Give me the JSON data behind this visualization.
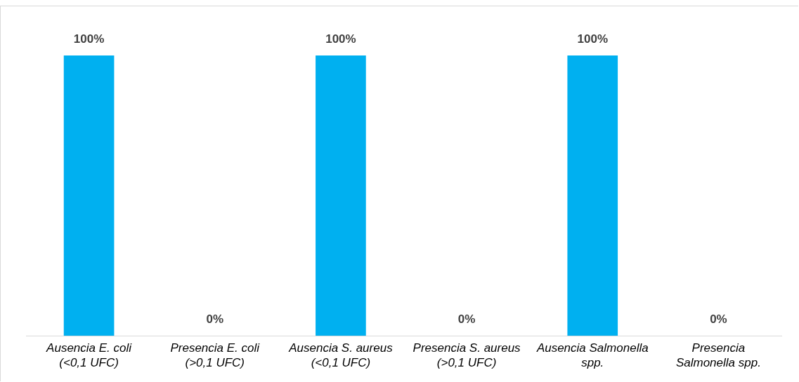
{
  "chart_data": {
    "type": "bar",
    "categories": [
      "Ausencia E. coli (<0,1 UFC)",
      "Presencia E. coli (>0,1 UFC)",
      "Ausencia S. aureus (<0,1 UFC)",
      "Presencia S. aureus (>0,1 UFC)",
      "Ausencia Salmonella spp.",
      "Presencia Salmonella spp."
    ],
    "values": [
      100,
      0,
      100,
      0,
      100,
      0
    ],
    "color": "#00b0f0",
    "value_labels": [
      "100%",
      "0%",
      "100%",
      "0%",
      "100%",
      "0%"
    ],
    "grid": false,
    "legend": false
  }
}
